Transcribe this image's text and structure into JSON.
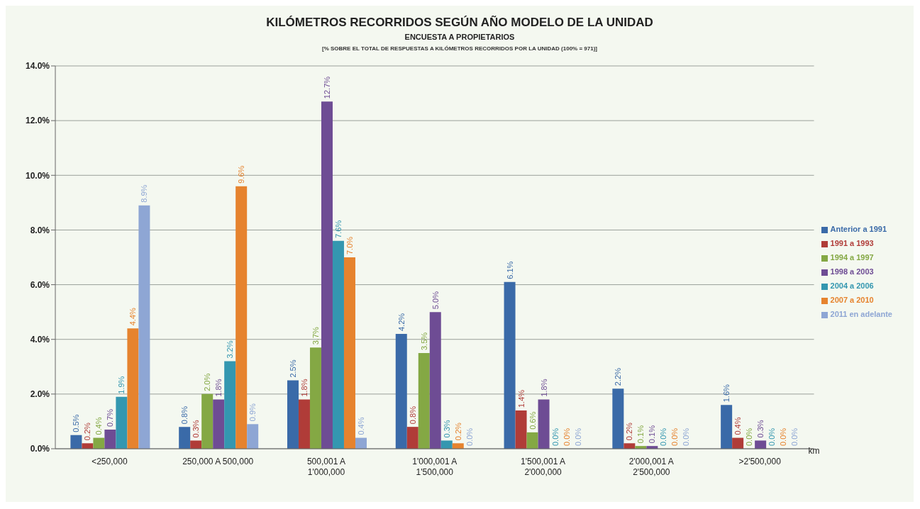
{
  "chart_data": {
    "type": "bar",
    "title": "KILÓMETROS RECORRIDOS SEGÚN AÑO MODELO DE LA UNIDAD",
    "subtitle": "ENCUESTA A PROPIETARIOS",
    "annotations": [
      "[% SOBRE EL TOTAL DE RESPUESTAS A KILÓMETROS RECORRIDOS POR LA UNIDAD (100% = 971)]"
    ],
    "xlabel": "km",
    "categories": [
      "<250,000",
      "250,000 A 500,000",
      "500,001 A 1'000,000",
      "1'000,001 A 1'500,000",
      "1'500,001 A 2'000,000",
      "2'000,001 A 2'500,000",
      ">2'500,000"
    ],
    "series": [
      {
        "name": "Anterior a 1991",
        "color": "#3a6aa8",
        "values": [
          0.5,
          0.8,
          2.5,
          4.2,
          6.1,
          2.2,
          1.6
        ],
        "value_labels": [
          "0.5%",
          "0.8%",
          "2.5%",
          "4.2%",
          "6.1%",
          "2.2%",
          "1.6%"
        ]
      },
      {
        "name": "1991 a 1993",
        "color": "#b03c38",
        "values": [
          0.2,
          0.3,
          1.8,
          0.8,
          1.4,
          0.2,
          0.4
        ],
        "value_labels": [
          "0.2%",
          "0.3%",
          "1.8%",
          "0.8%",
          "1.4%",
          "0.2%",
          "0.4%"
        ]
      },
      {
        "name": "1994 a 1997",
        "color": "#84a844",
        "values": [
          0.4,
          2.0,
          3.7,
          3.5,
          0.6,
          0.1,
          0.0
        ],
        "value_labels": [
          "0.4%",
          "2.0%",
          "3.7%",
          "3.5%",
          "0.6%",
          "0.1%",
          "0.0%"
        ]
      },
      {
        "name": "1998 a 2003",
        "color": "#6e4c94",
        "values": [
          0.7,
          1.8,
          12.7,
          5.0,
          1.8,
          0.1,
          0.3
        ],
        "value_labels": [
          "0.7%",
          "1.8%",
          "12.7%",
          "5.0%",
          "1.8%",
          "0.1%",
          "0.3%"
        ]
      },
      {
        "name": "2004 a 2006",
        "color": "#3497b0",
        "values": [
          1.9,
          3.2,
          7.6,
          0.3,
          0.0,
          0.0,
          0.0
        ],
        "value_labels": [
          "1.9%",
          "3.2%",
          "7.6%",
          "0.3%",
          "0.0%",
          "0.0%",
          "0.0%"
        ]
      },
      {
        "name": "2007 a 2010",
        "color": "#e6832e",
        "values": [
          4.4,
          9.6,
          7.0,
          0.2,
          0.0,
          0.0,
          0.0
        ],
        "value_labels": [
          "4.4%",
          "9.6%",
          "7.0%",
          "0.2%",
          "0.0%",
          "0.0%",
          "0.0%"
        ]
      },
      {
        "name": "2011 en adelante",
        "color": "#8ea6d4",
        "values": [
          8.9,
          0.9,
          0.4,
          0.0,
          0.0,
          0.0,
          0.0
        ],
        "value_labels": [
          "8.9%",
          "0.9%",
          "0.4%",
          "0.0%",
          "0.0%",
          "0.0%",
          "0.0%"
        ]
      }
    ],
    "ylim": [
      0,
      14
    ],
    "yticks": [
      {
        "value": 0,
        "label": "0.0%"
      },
      {
        "value": 2,
        "label": "2.0%"
      },
      {
        "value": 4,
        "label": "4.0%"
      },
      {
        "value": 6,
        "label": "6.0%"
      },
      {
        "value": 8,
        "label": "8.0%"
      },
      {
        "value": 10,
        "label": "10.0%"
      },
      {
        "value": 12,
        "label": "12.0%"
      },
      {
        "value": 14,
        "label": "14.0%"
      }
    ],
    "grid": "y",
    "legend": "right"
  }
}
